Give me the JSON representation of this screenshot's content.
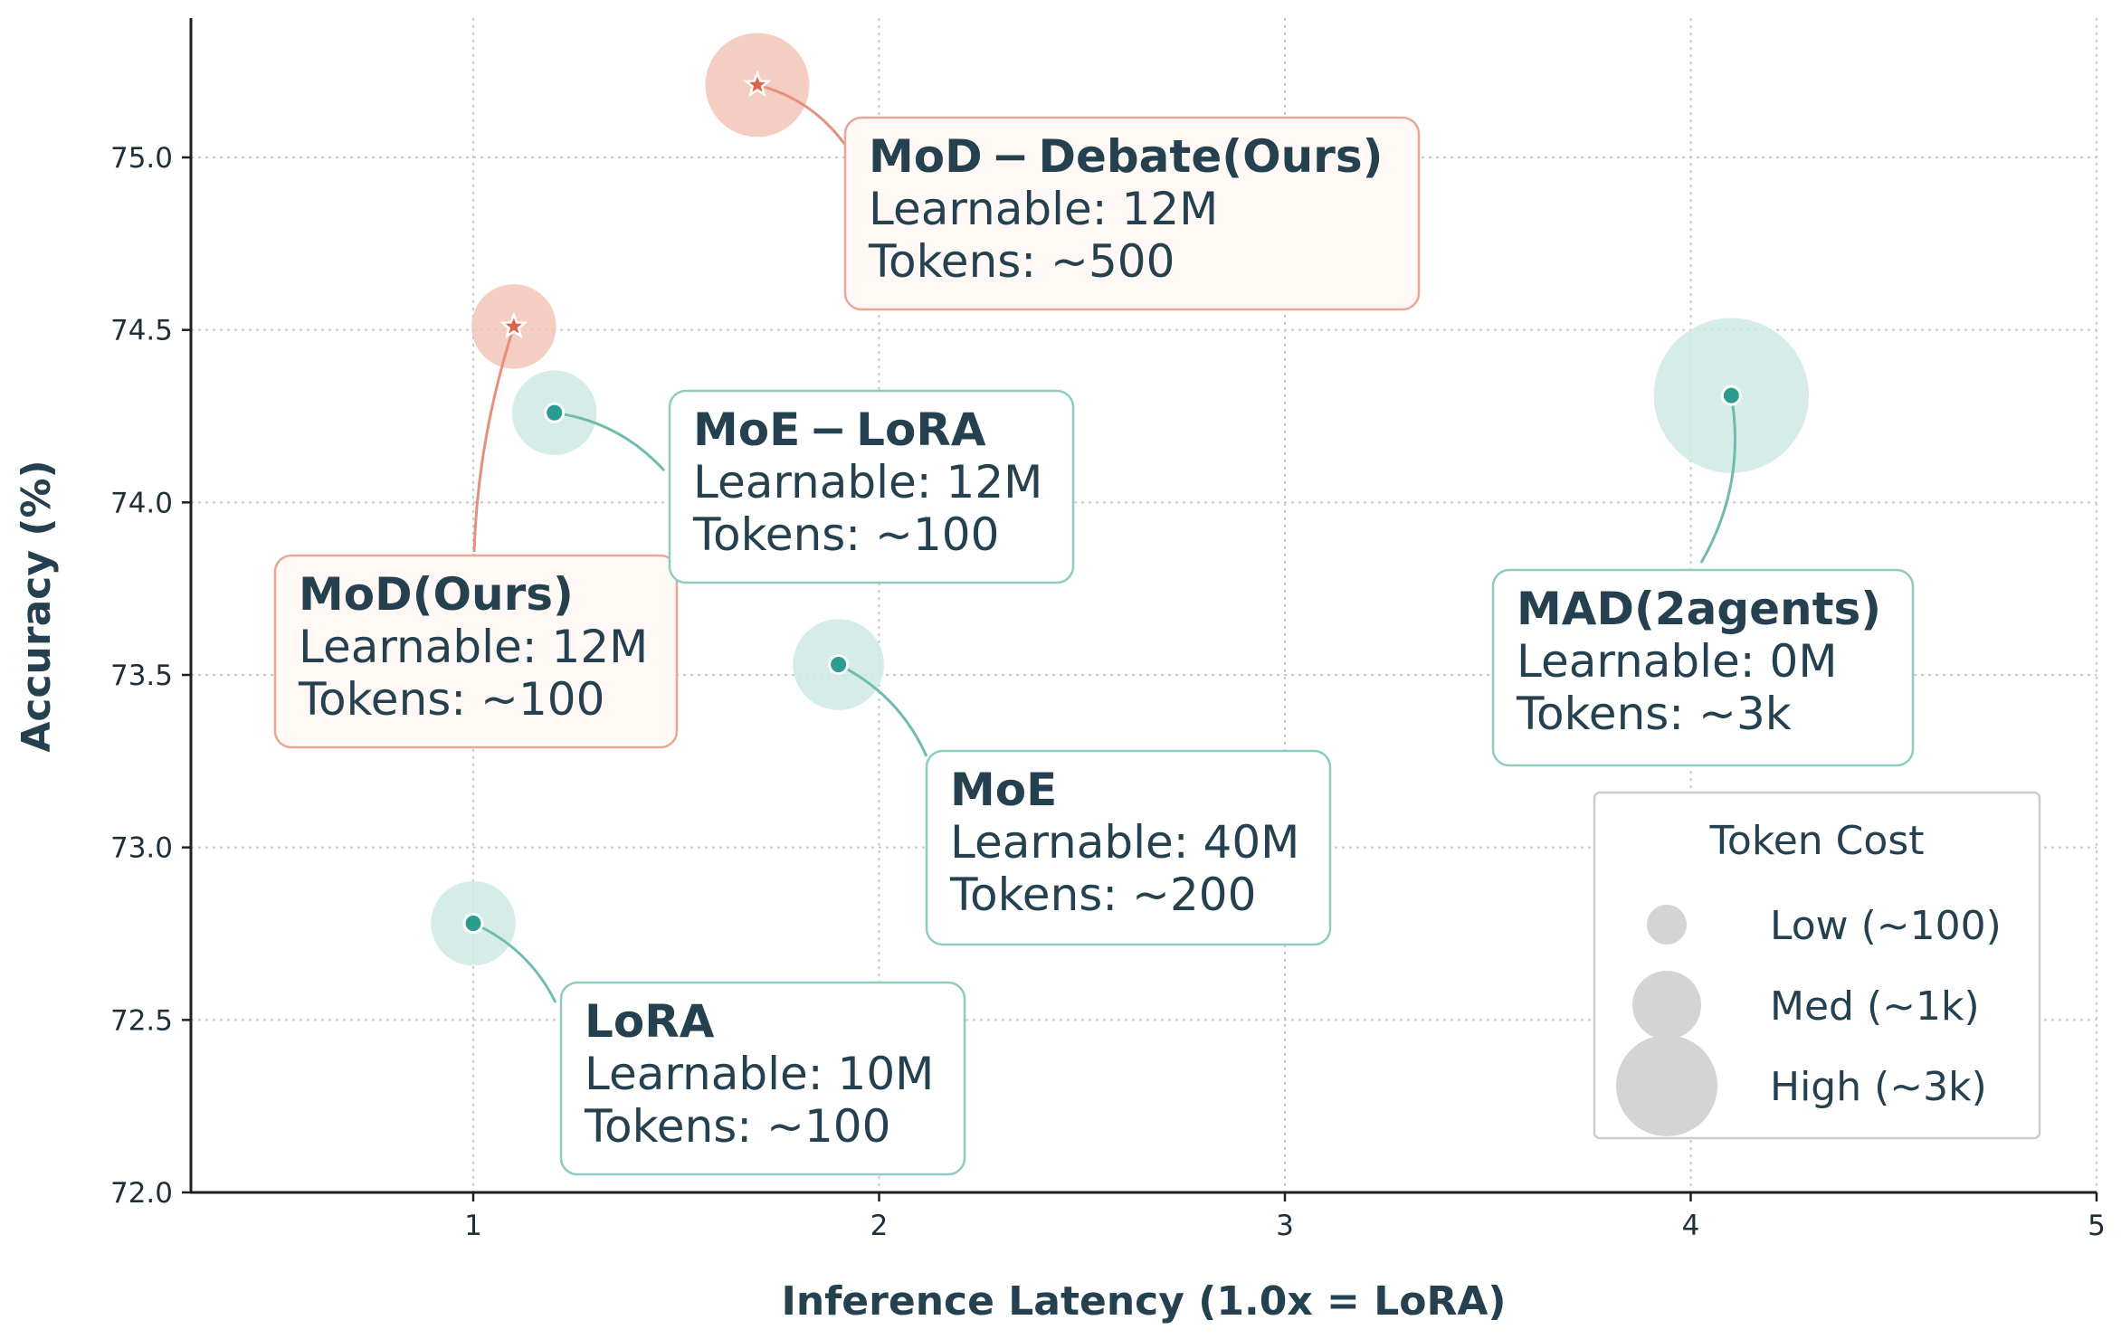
{
  "chart_data": {
    "type": "scatter",
    "title": "",
    "xlabel": "Inference Latency (1.0x = LoRA)",
    "ylabel": "Accuracy (%)",
    "xlim": [
      0.3,
      5.0
    ],
    "ylim": [
      72.0,
      75.4
    ],
    "xticks": [
      1,
      2,
      3,
      4,
      5
    ],
    "xtick_labels": [
      "1",
      "2",
      "3",
      "4",
      "5"
    ],
    "yticks": [
      72.0,
      72.5,
      73.0,
      73.5,
      74.0,
      74.5,
      75.0
    ],
    "ytick_labels": [
      "72.0",
      "72.5",
      "73.0",
      "73.5",
      "74.0",
      "74.5",
      "75.0"
    ],
    "grid": true,
    "points": [
      {
        "name": "MoD − Debate(Ours)",
        "x": 1.7,
        "y": 75.21,
        "learnable": "Learnable: 12M",
        "tokens": "Tokens: ~500",
        "group": "ours",
        "marker": "star",
        "bubble": 500
      },
      {
        "name": "MoD(Ours)",
        "x": 1.1,
        "y": 74.51,
        "learnable": "Learnable: 12M",
        "tokens": "Tokens: ~100",
        "group": "ours",
        "marker": "star",
        "bubble": 100
      },
      {
        "name": "MoE − LoRA",
        "x": 1.2,
        "y": 74.26,
        "learnable": "Learnable: 12M",
        "tokens": "Tokens: ~100",
        "group": "baseline",
        "marker": "circle",
        "bubble": 100
      },
      {
        "name": "MAD(2agents)",
        "x": 4.1,
        "y": 74.31,
        "learnable": "Learnable: 0M",
        "tokens": "Tokens: ~3k",
        "group": "baseline",
        "marker": "circle",
        "bubble": 3000
      },
      {
        "name": "MoE",
        "x": 1.9,
        "y": 73.53,
        "learnable": "Learnable: 40M",
        "tokens": "Tokens: ~200",
        "group": "baseline",
        "marker": "circle",
        "bubble": 200
      },
      {
        "name": "LoRA",
        "x": 1.0,
        "y": 72.78,
        "learnable": "Learnable: 10M",
        "tokens": "Tokens: ~100",
        "group": "baseline",
        "marker": "circle",
        "bubble": 100
      }
    ],
    "legend": {
      "title": "Token Cost",
      "placement": "lower-right",
      "entries": [
        {
          "label": "Low (~100)",
          "size": 100
        },
        {
          "label": "Med (~1k)",
          "size": 1000
        },
        {
          "label": "High (~3k)",
          "size": 3000
        }
      ]
    },
    "colors": {
      "ours_marker": "#d9654f",
      "ours_bubble": "#f2c4b8",
      "ours_box_fill": "#fff8f4",
      "ours_box_edge": "#e8a898",
      "baseline_marker": "#2a9d8f",
      "baseline_bubble": "#cfe9e4",
      "baseline_box_fill": "#ffffff",
      "baseline_box_edge": "#8fcbc0",
      "text": "#25404f",
      "grid": "#c8c8c8",
      "legend_bubble": "#d4d4d4"
    }
  }
}
